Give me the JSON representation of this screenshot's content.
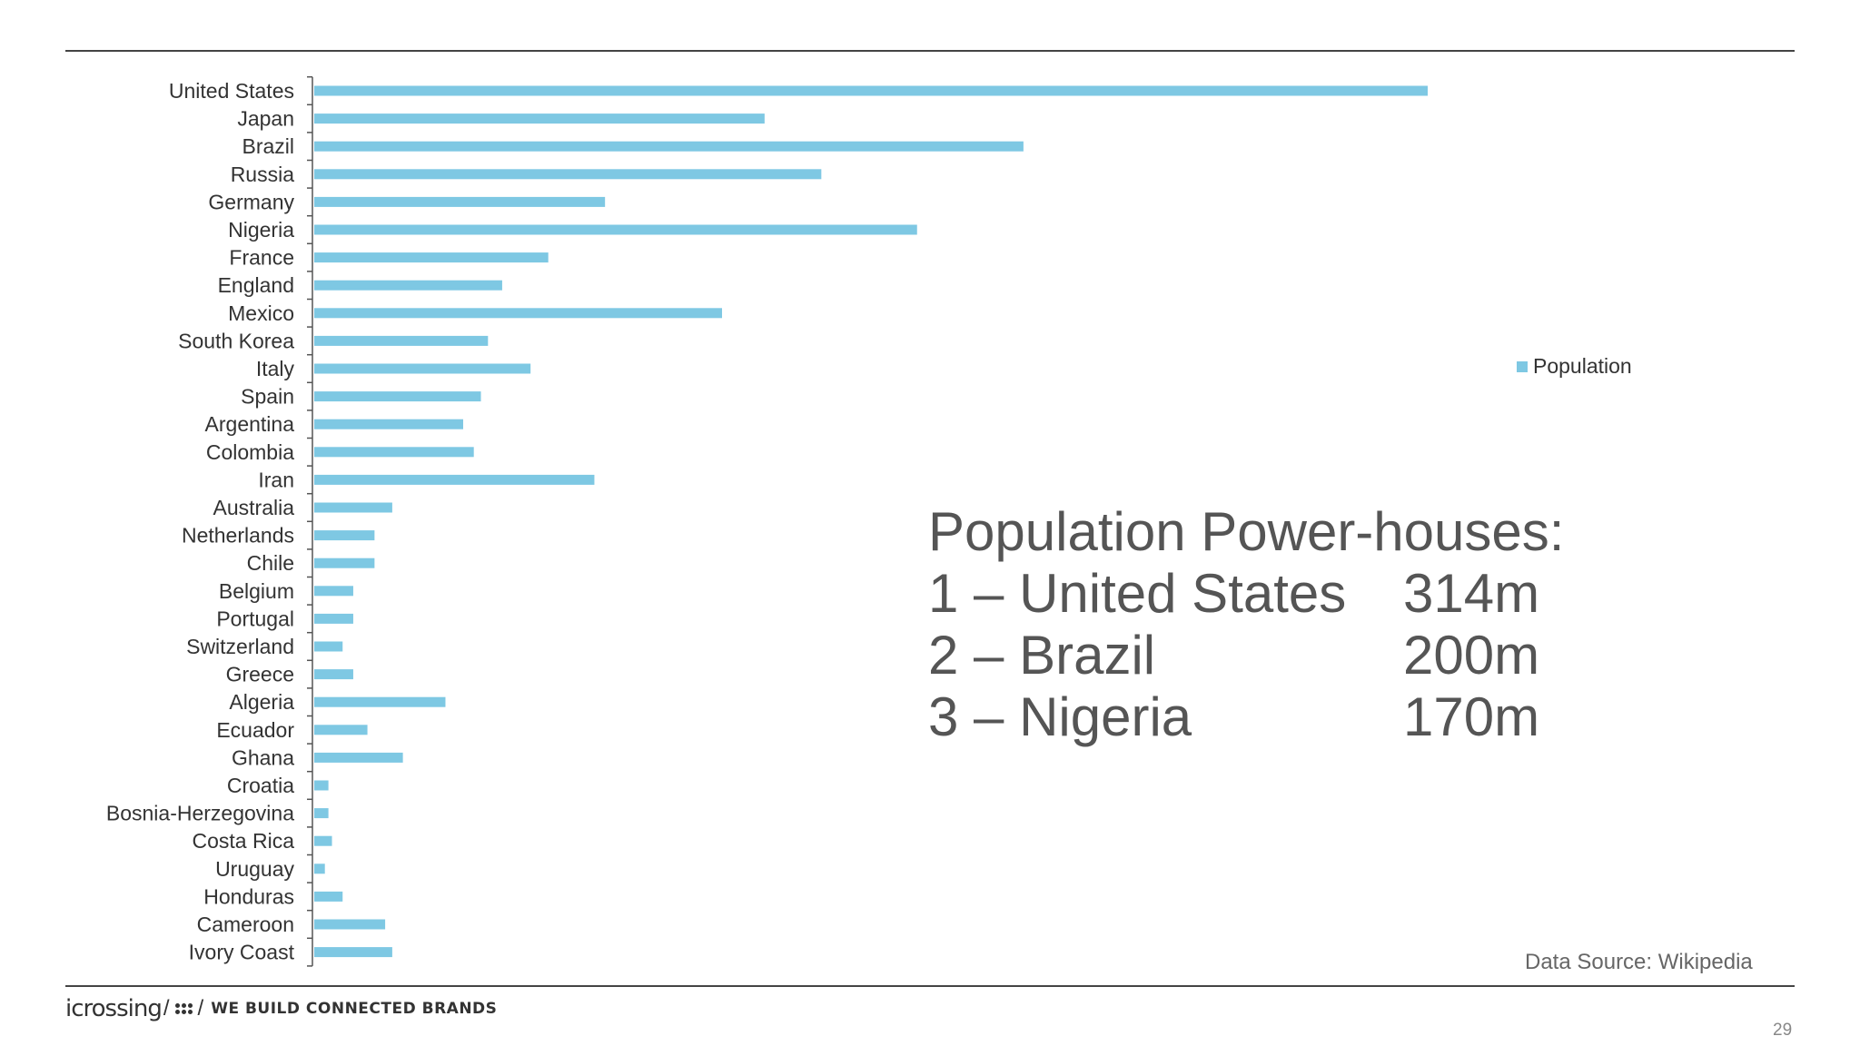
{
  "chart_data": {
    "type": "bar",
    "orientation": "horizontal",
    "categories": [
      "United States",
      "Japan",
      "Brazil",
      "Russia",
      "Germany",
      "Nigeria",
      "France",
      "England",
      "Mexico",
      "South Korea",
      "Italy",
      "Spain",
      "Argentina",
      "Colombia",
      "Iran",
      "Australia",
      "Netherlands",
      "Chile",
      "Belgium",
      "Portugal",
      "Switzerland",
      "Greece",
      "Algeria",
      "Ecuador",
      "Ghana",
      "Croatia",
      "Bosnia-Herzegovina",
      "Costa Rica",
      "Uruguay",
      "Honduras",
      "Cameroon",
      "Ivory Coast"
    ],
    "series": [
      {
        "name": "Population",
        "values": [
          314,
          127,
          200,
          143,
          82,
          170,
          66,
          53,
          115,
          49,
          61,
          47,
          42,
          45,
          79,
          22,
          17,
          17,
          11,
          11,
          8,
          11,
          37,
          15,
          25,
          4,
          4,
          5,
          3,
          8,
          20,
          22
        ]
      }
    ],
    "title": "",
    "xlabel": "",
    "ylabel": "",
    "xlim": [
      0,
      314
    ],
    "grid": false,
    "legend": "right",
    "bar_color": "#7ec8e3"
  },
  "callout": {
    "title": "Population Power-houses:",
    "rows": [
      {
        "name": "1 – United States",
        "value": "314m"
      },
      {
        "name": "2 – Brazil",
        "value": "200m"
      },
      {
        "name": "3 – Nigeria",
        "value": "170m"
      }
    ]
  },
  "source": "Data Source: Wikipedia",
  "footer": {
    "logo_word": "icrossing",
    "tagline": "WE BUILD CONNECTED BRANDS",
    "page_number": "29"
  }
}
